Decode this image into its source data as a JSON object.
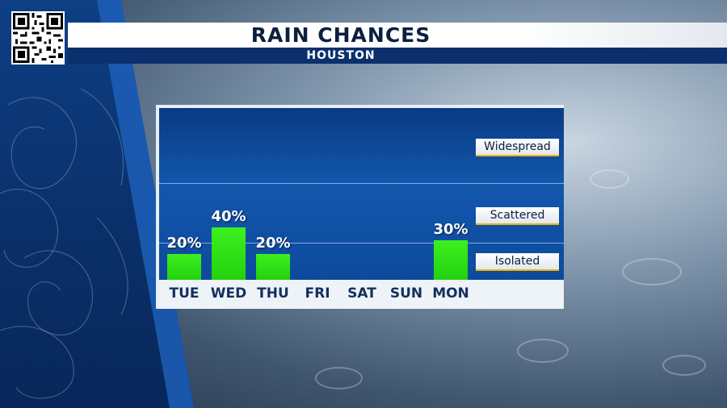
{
  "header": {
    "title": "RAIN CHANCES",
    "subtitle": "HOUSTON"
  },
  "qr_icon": "qr-code-icon",
  "colors": {
    "bar": "#2ee015",
    "plot_bg": "#1257ad",
    "baseline": "#f0b400",
    "title_text": "#0b1f3f",
    "subtitle_bg": "#0c2f6e"
  },
  "chart_data": {
    "type": "bar",
    "title": "RAIN CHANCES",
    "subtitle": "HOUSTON",
    "categories": [
      "TUE",
      "WED",
      "THU",
      "FRI",
      "SAT",
      "SUN",
      "MON"
    ],
    "values": [
      20,
      40,
      20,
      0,
      0,
      0,
      30
    ],
    "value_labels": [
      "20%",
      "40%",
      "20%",
      "",
      "",
      "",
      "30%"
    ],
    "ylim": [
      0,
      100
    ],
    "bands": [
      "Isolated",
      "Scattered",
      "Widespread"
    ],
    "grid": false,
    "legend": "none"
  }
}
